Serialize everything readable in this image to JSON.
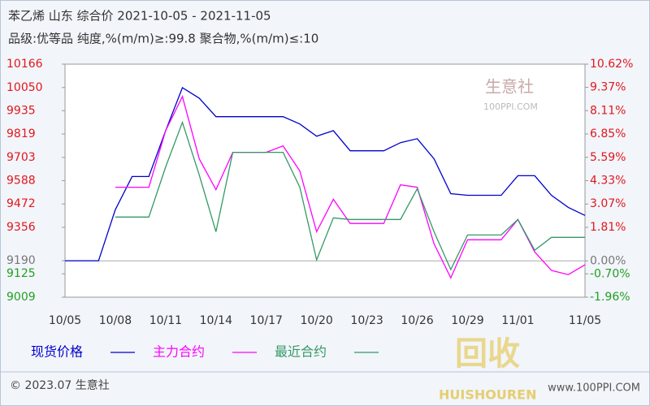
{
  "chart_data": {
    "type": "line",
    "title": "苯乙烯 山东 综合价 2021-10-05 - 2021-11-05",
    "subtitle": "品级:优等品 纯度,%(m/m)≥:99.8 聚合物,%(m/m)≤:10",
    "categories": [
      "10/05",
      null,
      null,
      "10/08",
      null,
      null,
      "10/11",
      null,
      null,
      "10/14",
      null,
      null,
      "10/17",
      null,
      null,
      "10/20",
      null,
      null,
      "10/23",
      null,
      null,
      "10/26",
      null,
      null,
      "10/29",
      null,
      null,
      "11/01",
      null,
      null,
      null,
      "11/05"
    ],
    "series": [
      {
        "name": "现货价格",
        "color": "#0000cc",
        "values": [
          9190,
          9190,
          9190,
          9443,
          9608,
          9608,
          9836,
          10049,
          9997,
          9905,
          9905,
          9905,
          9905,
          9905,
          9869,
          9808,
          9836,
          9736,
          9736,
          9736,
          9776,
          9796,
          9696,
          9523,
          9515,
          9515,
          9515,
          9612,
          9612,
          9515,
          9455,
          9415
        ]
      },
      {
        "name": "主力合约",
        "color": "#ff00ff",
        "values": [
          null,
          null,
          null,
          9555,
          9555,
          9555,
          9836,
          10005,
          9696,
          9543,
          9728,
          9728,
          9728,
          9760,
          9636,
          9334,
          9495,
          9375,
          9375,
          9375,
          9567,
          9555,
          9274,
          9105,
          9294,
          9294,
          9294,
          9395,
          9234,
          9142,
          9121,
          9170
        ]
      },
      {
        "name": "最近合约",
        "color": "#339966",
        "values": [
          null,
          null,
          null,
          9407,
          9407,
          9407,
          9656,
          9877,
          9616,
          9334,
          9728,
          9728,
          9728,
          9728,
          9555,
          9194,
          9403,
          9395,
          9395,
          9395,
          9395,
          9547,
          9334,
          9146,
          9318,
          9318,
          9318,
          9395,
          9242,
          9306,
          9306,
          9306
        ]
      }
    ],
    "ylim": [
      9009,
      10166
    ],
    "yticks": [
      10166,
      10050,
      9935,
      9819,
      9703,
      9588,
      9472,
      9356,
      9190,
      9125,
      9009
    ],
    "y2lim": [
      -1.96,
      10.62
    ],
    "y2ticks": [
      {
        "value": 10.62,
        "label": "10.62%"
      },
      {
        "value": 9.37,
        "label": "9.37%"
      },
      {
        "value": 8.11,
        "label": "8.11%"
      },
      {
        "value": 6.85,
        "label": "6.85%"
      },
      {
        "value": 5.59,
        "label": "5.59%"
      },
      {
        "value": 4.33,
        "label": "4.33%"
      },
      {
        "value": 3.07,
        "label": "3.07%"
      },
      {
        "value": 1.81,
        "label": "1.81%"
      },
      {
        "value": 0,
        "label": "0.00%"
      },
      {
        "value": -0.7,
        "label": "-0.70%"
      },
      {
        "value": -1.96,
        "label": "-1.96%"
      }
    ],
    "grid": false,
    "legend": "bottom",
    "watermark": "生意社",
    "watermark_site": "100PPI.COM",
    "copyright": "© 2023.07 生意社",
    "website": "www.100PPI.COM",
    "logo_text": "回收",
    "logo_caption": "HUISHOUREN"
  }
}
